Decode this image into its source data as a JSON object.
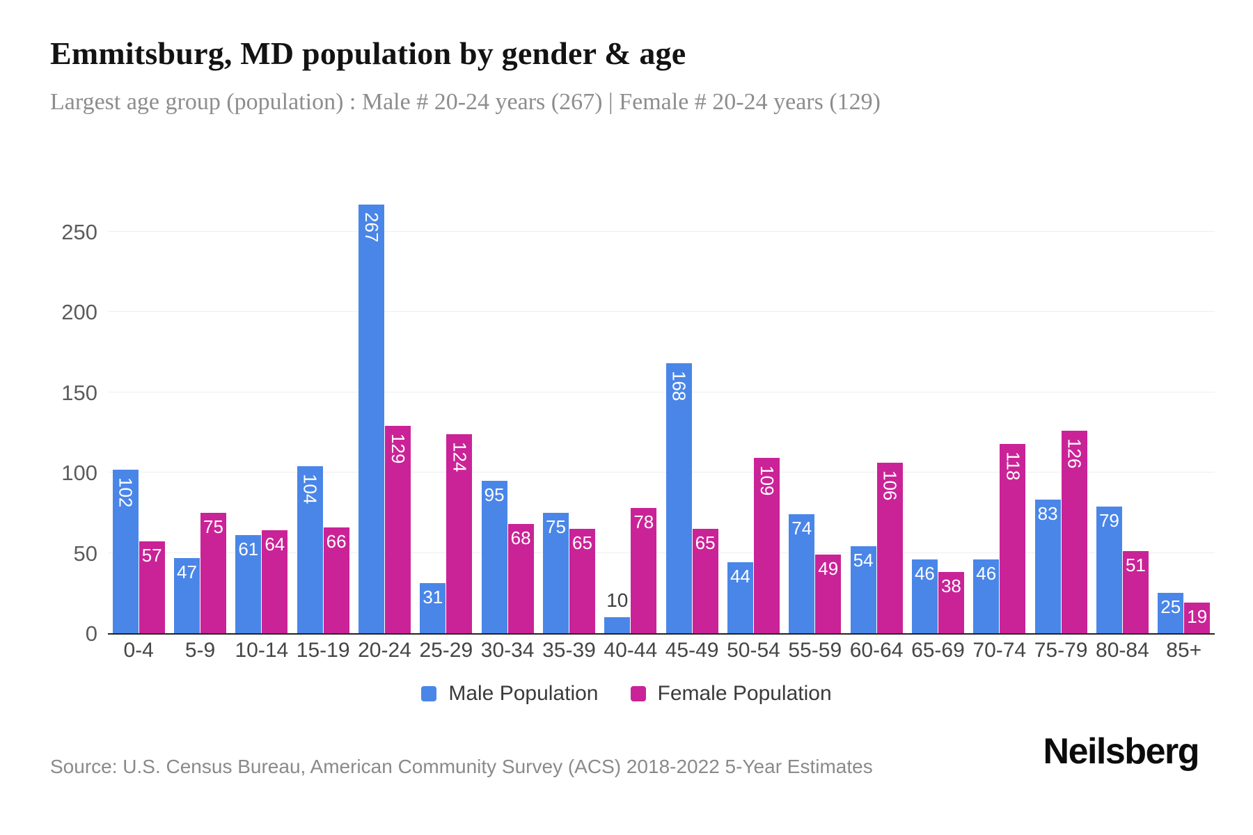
{
  "header": {
    "title": "Emmitsburg, MD population by gender & age",
    "subtitle": "Largest age group (population) : Male # 20-24 years (267) | Female # 20-24 years (129)"
  },
  "chart_data": {
    "type": "bar",
    "title": "Emmitsburg, MD population by gender & age",
    "categories": [
      "0-4",
      "5-9",
      "10-14",
      "15-19",
      "20-24",
      "25-29",
      "30-34",
      "35-39",
      "40-44",
      "45-49",
      "50-54",
      "55-59",
      "60-64",
      "65-69",
      "70-74",
      "75-79",
      "80-84",
      "85+"
    ],
    "series": [
      {
        "name": "Male Population",
        "color": "#4a86e8",
        "values": [
          102,
          47,
          61,
          104,
          267,
          31,
          95,
          75,
          10,
          168,
          44,
          74,
          54,
          46,
          46,
          83,
          79,
          25
        ]
      },
      {
        "name": "Female Population",
        "color": "#ca2397",
        "values": [
          57,
          75,
          64,
          66,
          129,
          124,
          68,
          65,
          78,
          65,
          109,
          49,
          106,
          38,
          118,
          126,
          51,
          19
        ]
      }
    ],
    "xlabel": "",
    "ylabel": "",
    "yticks": [
      0,
      50,
      100,
      150,
      200,
      250
    ],
    "ylim": [
      0,
      273
    ],
    "grid": "horizontal-only",
    "gridline_color": "#eeeeee",
    "axis_line_color": "#222222",
    "bar_label_color_inside": "#ffffff",
    "bar_label_color_outside": "#3d3d3d",
    "legend_position": "bottom"
  },
  "footer": {
    "source": "Source: U.S. Census Bureau, American Community Survey (ACS) 2018-2022 5-Year Estimates",
    "brand": "Neilsberg"
  }
}
